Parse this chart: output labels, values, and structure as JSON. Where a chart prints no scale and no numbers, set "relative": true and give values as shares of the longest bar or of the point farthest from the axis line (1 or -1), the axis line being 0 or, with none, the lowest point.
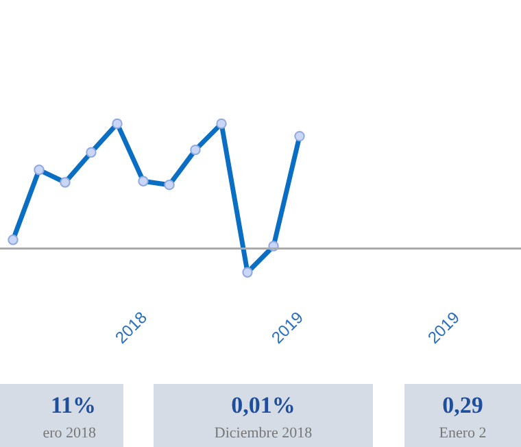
{
  "chart_data": {
    "type": "line",
    "relative": true,
    "marker": "circle",
    "categories": [
      null,
      null,
      null,
      null,
      null,
      "2018",
      null,
      null,
      null,
      null,
      null,
      "2019",
      null,
      null,
      null,
      null,
      null,
      "2019",
      null,
      null
    ],
    "series": [
      {
        "color": "#0a6fc2",
        "values": [
          0.07,
          0.63,
          0.53,
          0.77,
          1,
          0.54,
          0.51,
          0.79,
          1,
          -0.19,
          0.02,
          0.9,
          null,
          null,
          null,
          null,
          null,
          null,
          null,
          null
        ]
      }
    ],
    "annotations": [
      "11%",
      "ero 2018",
      "0,01%",
      "Diciembre 2018",
      "0,29",
      "Enero 2"
    ]
  }
}
